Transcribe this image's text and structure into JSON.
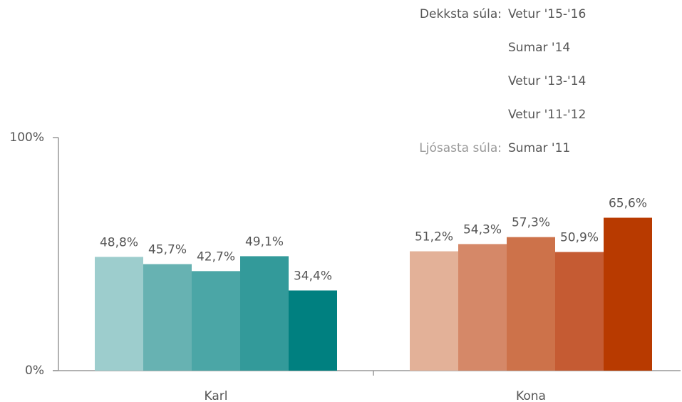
{
  "chart_data": {
    "type": "bar",
    "categories": [
      "Karl",
      "Kona"
    ],
    "series": [
      {
        "name": "Sumar '11",
        "colors": [
          "#9dcdcd",
          "#e3b198"
        ],
        "values": [
          48.8,
          51.2
        ],
        "value_labels": [
          "48,8%",
          "51,2%"
        ]
      },
      {
        "name": "Vetur '11-'12",
        "colors": [
          "#67b2b2",
          "#d58868"
        ],
        "values": [
          45.7,
          54.3
        ],
        "value_labels": [
          "45,7%",
          "54,3%"
        ]
      },
      {
        "name": "Vetur '13-'14",
        "colors": [
          "#4ba6a6",
          "#cd724a"
        ],
        "values": [
          42.7,
          57.3
        ],
        "value_labels": [
          "42,7%",
          "57,3%"
        ]
      },
      {
        "name": "Sumar '14",
        "colors": [
          "#339a9a",
          "#c55b33"
        ],
        "values": [
          49.1,
          50.9
        ],
        "value_labels": [
          "49,1%",
          "50,9%"
        ]
      },
      {
        "name": "Vetur '15-'16",
        "colors": [
          "#008080",
          "#b83a00"
        ],
        "values": [
          34.4,
          65.6
        ],
        "value_labels": [
          "34,4%",
          "65,6%"
        ]
      }
    ],
    "legend_darkest_label": "Dekksta súla:",
    "legend_lightest_label": "Ljósasta súla:",
    "ylim": [
      0,
      100
    ],
    "yticks": [
      {
        "value": 0,
        "label": "0%"
      },
      {
        "value": 100,
        "label": "100%"
      }
    ],
    "grid": false
  }
}
